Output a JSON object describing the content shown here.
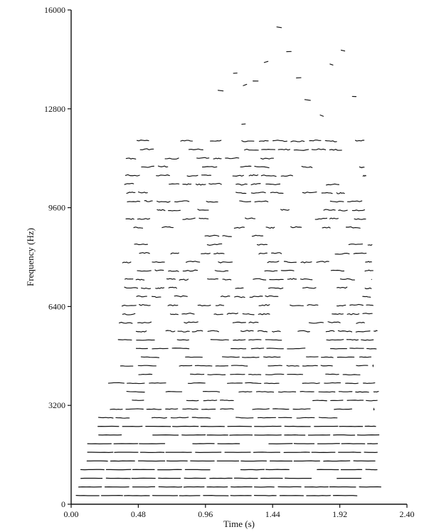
{
  "chart_data": {
    "type": "scatter",
    "description_style": "harmonic-track",
    "xlabel": "Time (s)",
    "ylabel": "Frequency (Hz)",
    "xlim": [
      0.0,
      2.4
    ],
    "ylim": [
      0,
      16000
    ],
    "xticks": [
      0.0,
      0.48,
      0.96,
      1.44,
      1.92,
      2.4
    ],
    "xtick_labels": [
      "0.00",
      "0.48",
      "0.96",
      "1.44",
      "1.92",
      "2.40"
    ],
    "yticks": [
      0,
      3200,
      6400,
      9600,
      12800,
      16000
    ],
    "ytick_labels": [
      "0",
      "3200",
      "6400",
      "9600",
      "12800",
      "16000"
    ],
    "grid": false,
    "legend": "none",
    "fundamental_hz": 280,
    "harmonic_count": 42,
    "stroke_color": "#111111",
    "harmonic_envelope": [
      {
        "max_hz": 300,
        "start_s": 0.03,
        "end_s": 2.16
      },
      {
        "max_hz": 1200,
        "start_s": 0.05,
        "end_s": 2.22
      },
      {
        "max_hz": 2200,
        "start_s": 0.1,
        "end_s": 2.22
      },
      {
        "max_hz": 3000,
        "start_s": 0.18,
        "end_s": 2.2
      },
      {
        "max_hz": 4000,
        "start_s": 0.26,
        "end_s": 2.2
      },
      {
        "max_hz": 6000,
        "start_s": 0.33,
        "end_s": 2.19
      },
      {
        "max_hz": 9000,
        "start_s": 0.36,
        "end_s": 2.16
      },
      {
        "max_hz": 11200,
        "start_s": 0.38,
        "end_s": 2.12
      }
    ],
    "sparse_tracks": [
      {
        "x": 1.16,
        "y": 13950
      },
      {
        "x": 1.23,
        "y": 13550
      },
      {
        "x": 1.3,
        "y": 13700
      },
      {
        "x": 1.38,
        "y": 14300
      },
      {
        "x": 1.47,
        "y": 15450
      },
      {
        "x": 1.54,
        "y": 14650
      },
      {
        "x": 1.61,
        "y": 13800
      },
      {
        "x": 1.67,
        "y": 13100
      },
      {
        "x": 1.85,
        "y": 14250
      },
      {
        "x": 1.93,
        "y": 14700
      },
      {
        "x": 2.01,
        "y": 13200
      },
      {
        "x": 1.05,
        "y": 13400
      },
      {
        "x": 1.78,
        "y": 12600
      },
      {
        "x": 1.22,
        "y": 12300
      }
    ]
  }
}
